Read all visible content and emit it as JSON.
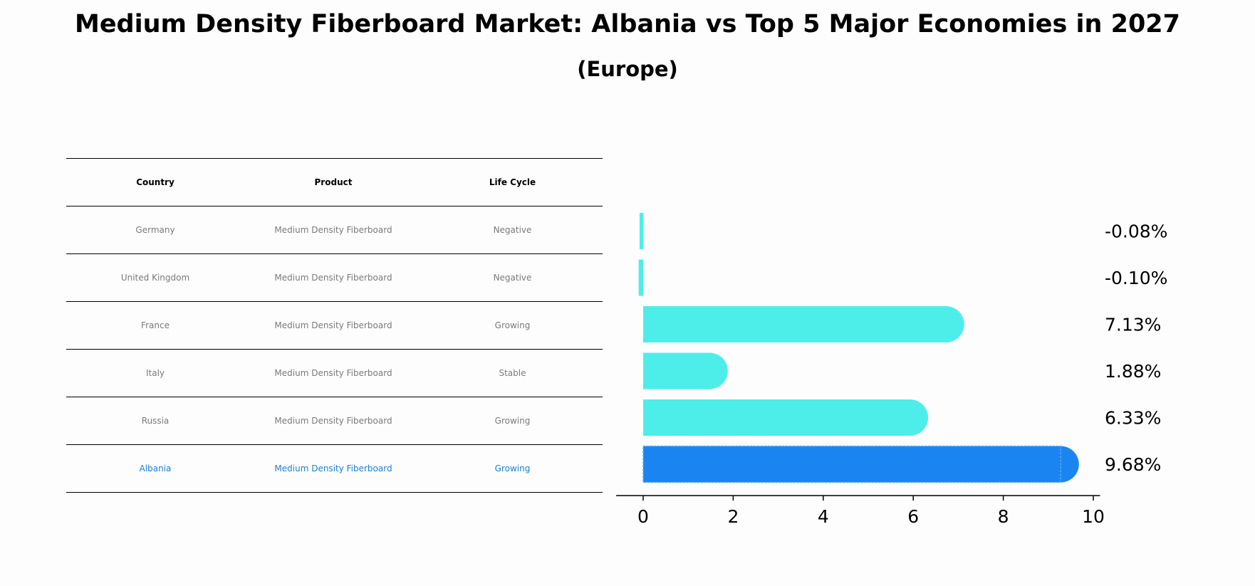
{
  "title": "Medium Density Fiberboard Market: Albania vs Top 5 Major Economies in 2027",
  "subtitle": "(Europe)",
  "table": {
    "headers": [
      "Country",
      "Product",
      "Life Cycle"
    ],
    "rows": [
      {
        "country": "Germany",
        "product": "Medium Density Fiberboard",
        "life_cycle": "Negative"
      },
      {
        "country": "United Kingdom",
        "product": "Medium Density Fiberboard",
        "life_cycle": "Negative"
      },
      {
        "country": "France",
        "product": "Medium Density Fiberboard",
        "life_cycle": "Growing"
      },
      {
        "country": "Italy",
        "product": "Medium Density Fiberboard",
        "life_cycle": "Stable"
      },
      {
        "country": "Russia",
        "product": "Medium Density Fiberboard",
        "life_cycle": "Growing"
      },
      {
        "country": "Albania",
        "product": "Medium Density Fiberboard",
        "life_cycle": "Growing"
      }
    ]
  },
  "colors": {
    "bar": "#4deeea",
    "highlight_bar": "#1a85f0",
    "highlight_text": "#1a7fd4"
  },
  "chart_data": {
    "type": "bar",
    "orientation": "horizontal",
    "title": "Medium Density Fiberboard Market: Albania vs Top 5 Major Economies in 2027",
    "subtitle": "(Europe)",
    "categories": [
      "Germany",
      "United Kingdom",
      "France",
      "Italy",
      "Russia",
      "Albania"
    ],
    "values": [
      -0.08,
      -0.1,
      7.13,
      1.88,
      6.33,
      9.68
    ],
    "value_labels": [
      "-0.08%",
      "-0.10%",
      "7.13%",
      "1.88%",
      "6.33%",
      "9.68%"
    ],
    "highlight": "Albania",
    "xlim": [
      -0.6,
      10.15
    ],
    "xticks": [
      0,
      2,
      4,
      6,
      8,
      10
    ],
    "xlabel": "",
    "ylabel": "",
    "grid": false
  }
}
